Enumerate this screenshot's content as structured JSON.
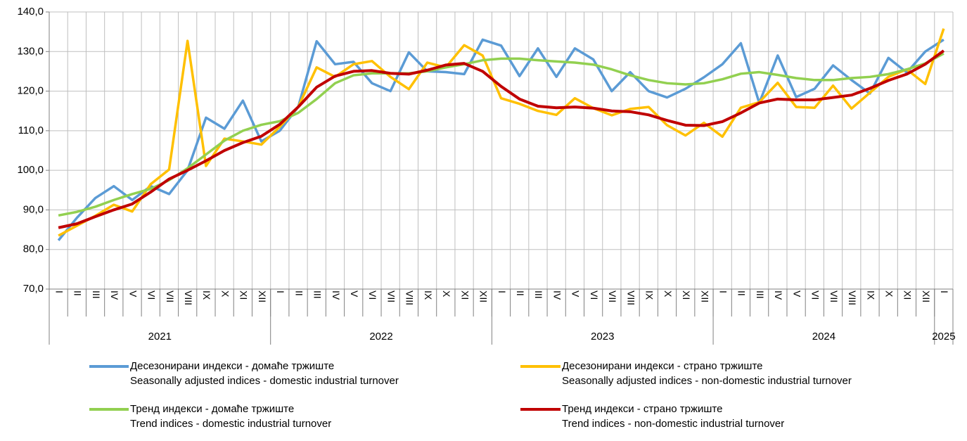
{
  "chart_data": {
    "type": "line",
    "categories": [
      "I",
      "II",
      "III",
      "IV",
      "V",
      "VI",
      "VII",
      "VIII",
      "IX",
      "X",
      "XI",
      "XII",
      "I",
      "II",
      "III",
      "IV",
      "V",
      "VI",
      "VII",
      "VIII",
      "IX",
      "X",
      "XI",
      "XII",
      "I",
      "II",
      "III",
      "IV",
      "V",
      "VI",
      "VII",
      "VIII",
      "IX",
      "X",
      "XI",
      "XII",
      "I",
      "II",
      "III",
      "IV",
      "V",
      "VI",
      "VII",
      "VIII",
      "IX",
      "X",
      "XI",
      "XII",
      "I"
    ],
    "groups": [
      {
        "label": "2021",
        "span": 12
      },
      {
        "label": "2022",
        "span": 12
      },
      {
        "label": "2023",
        "span": 12
      },
      {
        "label": "2024",
        "span": 12
      },
      {
        "label": "2025",
        "span": 1
      }
    ],
    "ylim": [
      70,
      140
    ],
    "yticks": [
      {
        "value": 70,
        "label": "70,0"
      },
      {
        "value": 80,
        "label": "80,0"
      },
      {
        "value": 90,
        "label": "90,0"
      },
      {
        "value": 100,
        "label": "100,0"
      },
      {
        "value": 110,
        "label": "110,0"
      },
      {
        "value": 120,
        "label": "120,0"
      },
      {
        "value": 130,
        "label": "130,0"
      },
      {
        "value": 140,
        "label": "140,0"
      }
    ],
    "grid": true,
    "series": [
      {
        "name": "Десезонирани индекси - домаће тржиште",
        "name_en": "Seasonally adjusted indices - domestic industrial turnover",
        "color": "#5b9bd5",
        "values": [
          82.3,
          88,
          93,
          96,
          92.5,
          96,
          94,
          100,
          113.3,
          110.5,
          117.6,
          107.3,
          110,
          116,
          132.6,
          126.8,
          127.4,
          122,
          120,
          129.8,
          125,
          124.8,
          124.3,
          133,
          131.5,
          123.8,
          130.8,
          123.6,
          130.8,
          128,
          120,
          124.8,
          120,
          118.4,
          120.6,
          123.5,
          126.8,
          132.1,
          117,
          129,
          118.5,
          120.6,
          126.5,
          122.8,
          119.4,
          128.4,
          124.7,
          130,
          133
        ]
      },
      {
        "name": "Десезонирани индекси - страно тржиште",
        "name_en": "Seasonally adjusted indices - non-domestic industrial turnover",
        "color": "#ffc000",
        "values": [
          83.5,
          86,
          88.5,
          91.3,
          89.6,
          96.5,
          100.2,
          132.7,
          101.1,
          108,
          107.3,
          106.5,
          111,
          116,
          126,
          123.6,
          126.8,
          127.6,
          123.6,
          120.5,
          127.2,
          126,
          131.6,
          129,
          118.2,
          116.8,
          115,
          114,
          118.2,
          115.7,
          113.9,
          115.5,
          116,
          111.4,
          108.8,
          112,
          108.5,
          115.8,
          117.2,
          122.1,
          116,
          115.8,
          121.4,
          115.6,
          119.6,
          123.6,
          125.5,
          121.8,
          135.8
        ]
      },
      {
        "name": "Тренд индекси - домаће тржиште",
        "name_en": "Trend indices - domestic industrial turnover",
        "color": "#92d050",
        "values": [
          88.6,
          89.5,
          90.8,
          92.5,
          94,
          95.3,
          97.5,
          100.5,
          104,
          107.5,
          110,
          111.5,
          112.4,
          114.5,
          118,
          122,
          124,
          124.5,
          124.5,
          124.5,
          125,
          126,
          126.8,
          127.8,
          128.2,
          128.2,
          127.8,
          127.5,
          127.2,
          126.7,
          125.5,
          124,
          122.8,
          122,
          121.7,
          122,
          123,
          124.4,
          124.8,
          124.1,
          123.3,
          122.8,
          122.8,
          123.3,
          123.6,
          124.3,
          125.5,
          127,
          129.5
        ]
      },
      {
        "name": "Тренд индекси - страно тржиште",
        "name_en": "Trend indices - non-domestic industrial turnover",
        "color": "#c00000",
        "values": [
          85.5,
          86.5,
          88.3,
          90,
          91.5,
          94.5,
          97.8,
          100,
          102.4,
          105,
          107,
          108.6,
          111.6,
          116,
          121,
          123.8,
          125,
          125.2,
          124.5,
          124.3,
          125.3,
          126.6,
          127,
          125,
          121.2,
          118,
          116.2,
          115.8,
          116,
          115.7,
          115,
          114.8,
          114,
          112.6,
          111.4,
          111.3,
          112.3,
          114.5,
          117,
          118,
          117.8,
          117.8,
          118.4,
          119,
          120.7,
          122.7,
          124.3,
          126.8,
          130.2
        ]
      }
    ]
  }
}
